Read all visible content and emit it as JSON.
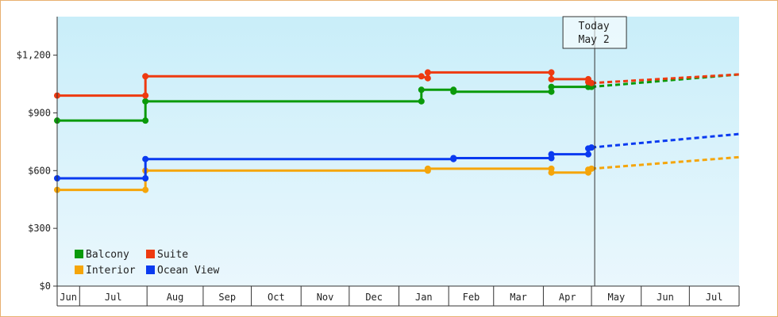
{
  "chart_data": {
    "type": "line",
    "title": "",
    "xlabel": "",
    "ylabel": "",
    "ylim": [
      0,
      1400
    ],
    "y_ticks": [
      0,
      300,
      600,
      900,
      1200
    ],
    "y_tick_labels": [
      "$0",
      "$300",
      "$600",
      "$900",
      "$1,200"
    ],
    "x_range": [
      "2017-06-01",
      "2018-07-31"
    ],
    "month_labels": [
      {
        "label": "Jun",
        "start": "2017-06-01",
        "end": "2017-06-15"
      },
      {
        "label": "Jul",
        "start": "2017-06-15",
        "end": "2017-07-27"
      },
      {
        "label": "Aug",
        "start": "2017-07-27",
        "end": "2017-08-31"
      },
      {
        "label": "Sep",
        "start": "2017-08-31",
        "end": "2017-09-30"
      },
      {
        "label": "Oct",
        "start": "2017-09-30",
        "end": "2017-10-31"
      },
      {
        "label": "Nov",
        "start": "2017-10-31",
        "end": "2017-11-30"
      },
      {
        "label": "Dec",
        "start": "2017-11-30",
        "end": "2017-12-31"
      },
      {
        "label": "Jan",
        "start": "2017-12-31",
        "end": "2018-01-31"
      },
      {
        "label": "Feb",
        "start": "2018-01-31",
        "end": "2018-02-28"
      },
      {
        "label": "Mar",
        "start": "2018-02-28",
        "end": "2018-03-31"
      },
      {
        "label": "Apr",
        "start": "2018-03-31",
        "end": "2018-04-30"
      },
      {
        "label": "May",
        "start": "2018-04-30",
        "end": "2018-05-31"
      },
      {
        "label": "Jun",
        "start": "2018-05-31",
        "end": "2018-06-30"
      },
      {
        "label": "Jul",
        "start": "2018-06-30",
        "end": "2018-07-31"
      }
    ],
    "today": {
      "date": "2018-05-02",
      "label_line1": "Today",
      "label_line2": "May 2"
    },
    "legend": {
      "placement": "bottom-left",
      "columns": 2
    },
    "grid": false,
    "background": {
      "top": "#c9eef9",
      "bottom": "#eaf7fd"
    },
    "series": [
      {
        "name": "Balcony",
        "color": "#0a9a0a",
        "points": [
          [
            "2017-06-01",
            860
          ],
          [
            "2017-07-26",
            860
          ],
          [
            "2017-07-26",
            960
          ],
          [
            "2018-01-14",
            960
          ],
          [
            "2018-01-14",
            1020
          ],
          [
            "2018-02-03",
            1020
          ],
          [
            "2018-02-03",
            1010
          ],
          [
            "2018-04-05",
            1010
          ],
          [
            "2018-04-05",
            1035
          ],
          [
            "2018-04-28",
            1035
          ],
          [
            "2018-04-30",
            1035
          ]
        ],
        "forecast": [
          [
            "2018-04-30",
            1035
          ],
          [
            "2018-07-31",
            1100
          ]
        ]
      },
      {
        "name": "Suite",
        "color": "#ee3a10",
        "points": [
          [
            "2017-06-01",
            990
          ],
          [
            "2017-07-26",
            990
          ],
          [
            "2017-07-26",
            1090
          ],
          [
            "2018-01-14",
            1090
          ],
          [
            "2018-01-18",
            1080
          ],
          [
            "2018-01-18",
            1110
          ],
          [
            "2018-04-05",
            1110
          ],
          [
            "2018-04-05",
            1075
          ],
          [
            "2018-04-28",
            1075
          ],
          [
            "2018-04-28",
            1060
          ],
          [
            "2018-04-30",
            1055
          ]
        ],
        "forecast": [
          [
            "2018-04-30",
            1055
          ],
          [
            "2018-07-31",
            1100
          ]
        ]
      },
      {
        "name": "Interior",
        "color": "#f5a50a",
        "points": [
          [
            "2017-06-01",
            500
          ],
          [
            "2017-07-26",
            500
          ],
          [
            "2017-07-26",
            600
          ],
          [
            "2018-01-18",
            600
          ],
          [
            "2018-01-18",
            610
          ],
          [
            "2018-04-05",
            610
          ],
          [
            "2018-04-05",
            590
          ],
          [
            "2018-04-28",
            590
          ],
          [
            "2018-04-28",
            605
          ],
          [
            "2018-04-30",
            610
          ]
        ],
        "forecast": [
          [
            "2018-04-30",
            610
          ],
          [
            "2018-07-31",
            670
          ]
        ]
      },
      {
        "name": "Ocean View",
        "color": "#0a3af0",
        "points": [
          [
            "2017-06-01",
            560
          ],
          [
            "2017-07-26",
            560
          ],
          [
            "2017-07-26",
            660
          ],
          [
            "2018-02-03",
            660
          ],
          [
            "2018-02-03",
            665
          ],
          [
            "2018-04-05",
            665
          ],
          [
            "2018-04-05",
            685
          ],
          [
            "2018-04-28",
            685
          ],
          [
            "2018-04-28",
            715
          ],
          [
            "2018-04-30",
            720
          ]
        ],
        "forecast": [
          [
            "2018-04-30",
            720
          ],
          [
            "2018-07-31",
            790
          ]
        ]
      }
    ]
  }
}
